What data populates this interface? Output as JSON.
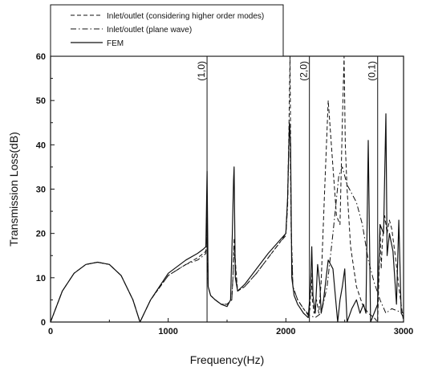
{
  "chart_data": {
    "type": "line",
    "title": "",
    "xlabel": "Frequency(Hz)",
    "ylabel": "Transmission Loss(dB)",
    "xlim": [
      0,
      3000
    ],
    "ylim": [
      0,
      60
    ],
    "x_ticks": [
      "0",
      "1000",
      "2000",
      "3000"
    ],
    "y_ticks": [
      "0",
      "10",
      "20",
      "30",
      "40",
      "50",
      "60"
    ],
    "grid": false,
    "legend_position": "top-left",
    "series": [
      {
        "name": "Inlet/outlet (considering higher order modes)",
        "style": "dashed",
        "x": [
          0,
          100,
          200,
          300,
          400,
          500,
          600,
          700,
          760,
          850,
          1000,
          1150,
          1250,
          1300,
          1320,
          1330,
          1340,
          1360,
          1400,
          1450,
          1500,
          1540,
          1550,
          1560,
          1575,
          1590,
          1650,
          1750,
          1850,
          1950,
          2000,
          2015,
          2025,
          2035,
          2045,
          2060,
          2100,
          2150,
          2190,
          2205,
          2215,
          2225,
          2240,
          2260,
          2280,
          2300,
          2330,
          2360,
          2400,
          2430,
          2460,
          2480,
          2495,
          2505,
          2520,
          2550,
          2600,
          2650,
          2700,
          2750,
          2780,
          2790,
          2800,
          2810,
          2820,
          2840,
          2860,
          2880,
          2900,
          2930,
          2960,
          2990,
          3000
        ],
        "values": [
          0,
          7,
          11,
          13,
          13.5,
          13,
          10.5,
          5,
          0,
          5,
          10.5,
          13,
          14.5,
          15.5,
          16,
          26,
          8,
          6,
          5,
          4,
          4,
          5,
          10,
          19,
          12,
          7,
          8,
          11,
          14.5,
          18,
          20,
          28,
          42,
          60,
          22,
          8,
          5,
          3,
          1.5,
          3,
          11,
          5,
          2,
          5,
          2,
          9,
          30,
          50,
          35,
          24,
          22,
          45,
          60,
          40,
          30,
          17,
          8,
          4,
          2,
          1,
          0,
          9,
          22,
          12,
          18,
          24,
          20,
          23,
          21,
          15,
          8,
          2,
          0
        ]
      },
      {
        "name": "Inlet/outlet (plane wave)",
        "style": "dashdot",
        "x": [
          0,
          100,
          200,
          300,
          400,
          500,
          600,
          700,
          760,
          850,
          1000,
          1150,
          1250,
          1300,
          1320,
          1330,
          1340,
          1360,
          1400,
          1450,
          1500,
          1540,
          1550,
          1560,
          1575,
          1590,
          1650,
          1750,
          1850,
          1950,
          2000,
          2015,
          2025,
          2035,
          2045,
          2060,
          2100,
          2150,
          2200,
          2250,
          2300,
          2350,
          2400,
          2450,
          2480,
          2520,
          2560,
          2600,
          2650,
          2700,
          2750,
          2800,
          2850,
          2900,
          2950,
          3000
        ],
        "values": [
          0,
          7,
          11,
          13,
          13.5,
          13,
          10.5,
          5,
          0,
          5,
          10.5,
          13,
          14,
          15,
          15.5,
          23,
          8,
          6,
          5,
          4,
          4,
          5,
          10,
          17,
          11,
          7,
          8,
          11,
          14.5,
          18,
          19.5,
          26,
          40,
          44,
          20,
          8,
          5,
          3,
          1.5,
          1,
          2,
          8,
          20,
          33,
          35,
          31,
          29,
          27,
          22,
          14,
          9,
          5,
          2,
          3,
          2.5,
          2
        ]
      },
      {
        "name": "FEM",
        "style": "solid",
        "x": [
          0,
          100,
          200,
          300,
          400,
          500,
          600,
          700,
          760,
          850,
          1000,
          1150,
          1250,
          1300,
          1320,
          1330,
          1340,
          1360,
          1400,
          1450,
          1500,
          1530,
          1545,
          1555,
          1560,
          1570,
          1590,
          1650,
          1750,
          1850,
          1950,
          2000,
          2015,
          2030,
          2040,
          2050,
          2070,
          2100,
          2150,
          2190,
          2210,
          2220,
          2230,
          2250,
          2270,
          2290,
          2300,
          2320,
          2360,
          2400,
          2440,
          2460,
          2480,
          2500,
          2520,
          2560,
          2600,
          2630,
          2660,
          2680,
          2700,
          2720,
          2750,
          2780,
          2800,
          2830,
          2850,
          2860,
          2880,
          2910,
          2940,
          2960,
          2980,
          3000
        ],
        "values": [
          0,
          7,
          11,
          13,
          13.5,
          13,
          10.5,
          5,
          0,
          5,
          11,
          14,
          15.5,
          16.5,
          17,
          34,
          8,
          6,
          5,
          4,
          3.5,
          5,
          20,
          32,
          35,
          10,
          7,
          8.5,
          12,
          15.5,
          18.5,
          20,
          28,
          45,
          40,
          10,
          6,
          4,
          2,
          1,
          8,
          17,
          6,
          2,
          13,
          8,
          2,
          5,
          14,
          12,
          0,
          5,
          8,
          12,
          0,
          3,
          5,
          2,
          4,
          2,
          41,
          0,
          2,
          4,
          22,
          20,
          47,
          15,
          20,
          16,
          4,
          23,
          2,
          1
        ]
      }
    ],
    "annotations": [
      {
        "label": "(1,0)",
        "x": 1330
      },
      {
        "label": "(2,0)",
        "x": 2200
      },
      {
        "label": "(0,1)",
        "x": 2780
      }
    ]
  }
}
